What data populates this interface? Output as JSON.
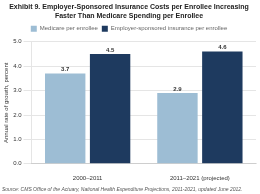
{
  "chart_data": {
    "type": "bar",
    "title": "Exhibit 9. Employer-Sponsored Insurance Costs per Enrollee Increasing Faster Than Medicare Spending per Enrollee",
    "y_label": "Annual rate of growth, percent",
    "source": "Source: CMS Office of the Actuary, National Health Expenditure Projections, 2011-2021, updated June 2012.",
    "categories": [
      "2000–2011",
      "2011–2021 (projected)"
    ],
    "series": [
      {
        "name": "Medicare per enrollee",
        "values": [
          3.7,
          2.9
        ],
        "color": "#9dbdd4"
      },
      {
        "name": "Employer-sponsored insurance per enrollee",
        "values": [
          4.5,
          4.6
        ],
        "color": "#1e3a5f"
      }
    ],
    "ylim": [
      0,
      5.0
    ],
    "yticks": [
      {
        "value": 0,
        "label": "0.0"
      },
      {
        "value": 1,
        "label": "1.0"
      },
      {
        "value": 2,
        "label": "2.0"
      },
      {
        "value": 3,
        "label": "3.0"
      },
      {
        "value": 4,
        "label": "4.0"
      },
      {
        "value": 5,
        "label": "5.0"
      }
    ],
    "grid": true,
    "legend": "top",
    "data_labels": true
  }
}
